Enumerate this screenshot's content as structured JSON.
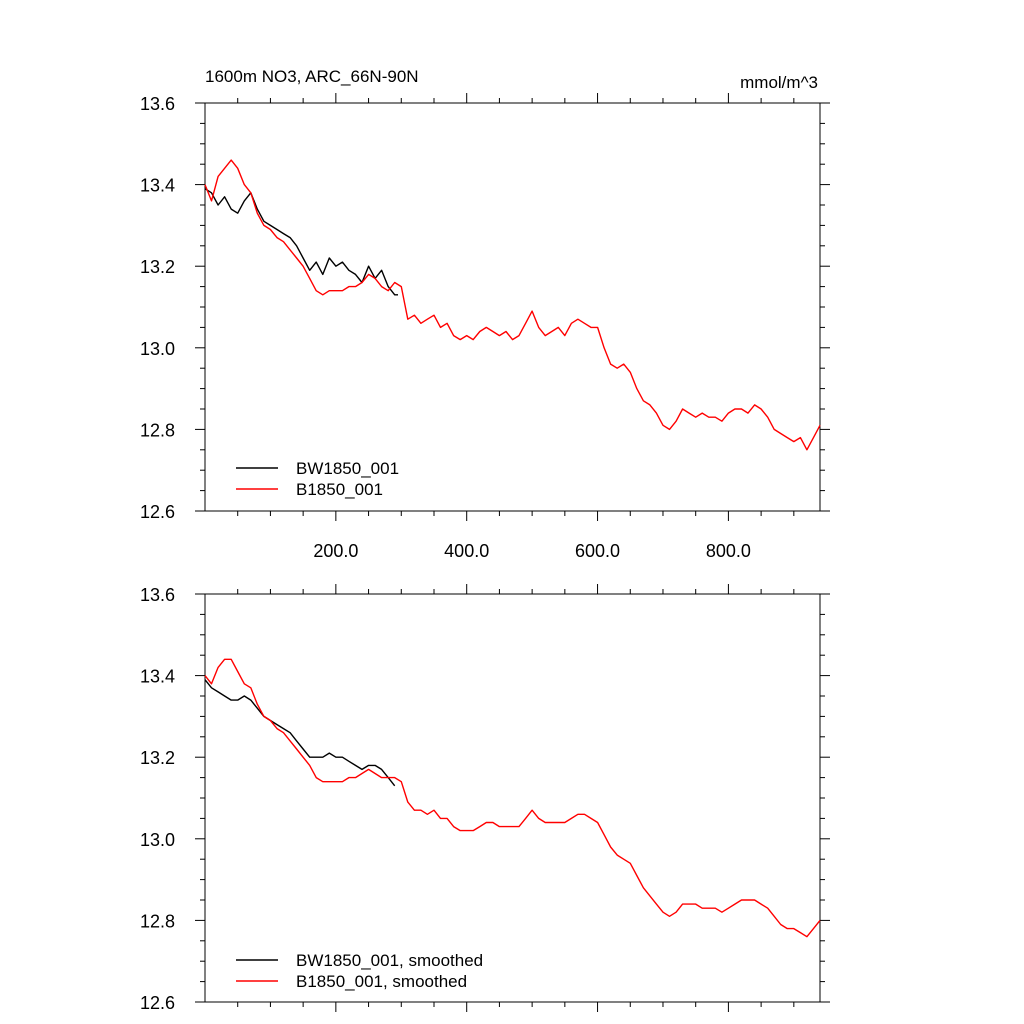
{
  "chart_data": [
    {
      "type": "line",
      "title": "1600m NO3, ARC_66N-90N",
      "units": "mmol/m^3",
      "xlim": [
        0,
        940
      ],
      "ylim": [
        12.6,
        13.6
      ],
      "xticks": [
        200,
        400,
        600,
        800
      ],
      "xtick_labels": [
        "200.0",
        "400.0",
        "600.0",
        "800.0"
      ],
      "yticks": [
        12.6,
        12.8,
        13.0,
        13.2,
        13.4,
        13.6
      ],
      "ytick_labels": [
        "12.6",
        "12.8",
        "13.0",
        "13.2",
        "13.4",
        "13.6"
      ],
      "legend_position": "bottom-left",
      "series": [
        {
          "name": "BW1850_001",
          "color": "#000000",
          "x": [
            0,
            10,
            20,
            30,
            40,
            50,
            60,
            70,
            80,
            90,
            100,
            110,
            120,
            130,
            140,
            150,
            160,
            170,
            180,
            190,
            200,
            210,
            220,
            230,
            240,
            250,
            260,
            270,
            280,
            290,
            295
          ],
          "y": [
            13.39,
            13.38,
            13.35,
            13.37,
            13.34,
            13.33,
            13.36,
            13.38,
            13.34,
            13.31,
            13.3,
            13.29,
            13.28,
            13.27,
            13.25,
            13.22,
            13.19,
            13.21,
            13.18,
            13.22,
            13.2,
            13.21,
            13.19,
            13.18,
            13.16,
            13.2,
            13.17,
            13.19,
            13.15,
            13.13,
            13.13
          ]
        },
        {
          "name": "B1850_001",
          "color": "#ff0000",
          "x": [
            0,
            10,
            20,
            30,
            40,
            50,
            60,
            70,
            80,
            90,
            100,
            110,
            120,
            130,
            140,
            150,
            160,
            170,
            180,
            190,
            200,
            210,
            220,
            230,
            240,
            250,
            260,
            270,
            280,
            290,
            300,
            310,
            320,
            330,
            340,
            350,
            360,
            370,
            380,
            390,
            400,
            410,
            420,
            430,
            440,
            450,
            460,
            470,
            480,
            490,
            500,
            510,
            520,
            530,
            540,
            550,
            560,
            570,
            580,
            590,
            600,
            610,
            620,
            630,
            640,
            650,
            660,
            670,
            680,
            690,
            700,
            710,
            720,
            730,
            740,
            750,
            760,
            770,
            780,
            790,
            800,
            810,
            820,
            830,
            840,
            850,
            860,
            870,
            880,
            890,
            900,
            910,
            920,
            930,
            940
          ],
          "y": [
            13.4,
            13.36,
            13.42,
            13.44,
            13.46,
            13.44,
            13.4,
            13.38,
            13.33,
            13.3,
            13.29,
            13.27,
            13.26,
            13.24,
            13.22,
            13.2,
            13.17,
            13.14,
            13.13,
            13.14,
            13.14,
            13.14,
            13.15,
            13.15,
            13.16,
            13.18,
            13.17,
            13.15,
            13.14,
            13.16,
            13.15,
            13.07,
            13.08,
            13.06,
            13.07,
            13.08,
            13.05,
            13.06,
            13.03,
            13.02,
            13.03,
            13.02,
            13.04,
            13.05,
            13.04,
            13.03,
            13.04,
            13.02,
            13.03,
            13.06,
            13.09,
            13.05,
            13.03,
            13.04,
            13.05,
            13.03,
            13.06,
            13.07,
            13.06,
            13.05,
            13.05,
            13.0,
            12.96,
            12.95,
            12.96,
            12.94,
            12.9,
            12.87,
            12.86,
            12.84,
            12.81,
            12.8,
            12.82,
            12.85,
            12.84,
            12.83,
            12.84,
            12.83,
            12.83,
            12.82,
            12.84,
            12.85,
            12.85,
            12.84,
            12.86,
            12.85,
            12.83,
            12.8,
            12.79,
            12.78,
            12.77,
            12.78,
            12.75,
            12.78,
            12.81
          ]
        }
      ]
    },
    {
      "type": "line",
      "title": "",
      "units": "",
      "xlim": [
        0,
        940
      ],
      "ylim": [
        12.6,
        13.6
      ],
      "xticks": [
        200,
        400,
        600,
        800
      ],
      "yticks": [
        12.6,
        12.8,
        13.0,
        13.2,
        13.4,
        13.6
      ],
      "ytick_labels": [
        "12.6",
        "12.8",
        "13.0",
        "13.2",
        "13.4",
        "13.6"
      ],
      "legend_position": "bottom-left",
      "series": [
        {
          "name": "BW1850_001, smoothed",
          "color": "#000000",
          "x": [
            0,
            10,
            20,
            30,
            40,
            50,
            60,
            70,
            80,
            90,
            100,
            110,
            120,
            130,
            140,
            150,
            160,
            170,
            180,
            190,
            200,
            210,
            220,
            230,
            240,
            250,
            260,
            270,
            280,
            290
          ],
          "y": [
            13.39,
            13.37,
            13.36,
            13.35,
            13.34,
            13.34,
            13.35,
            13.34,
            13.32,
            13.3,
            13.29,
            13.28,
            13.27,
            13.26,
            13.24,
            13.22,
            13.2,
            13.2,
            13.2,
            13.21,
            13.2,
            13.2,
            13.19,
            13.18,
            13.17,
            13.18,
            13.18,
            13.17,
            13.15,
            13.13
          ]
        },
        {
          "name": "B1850_001, smoothed",
          "color": "#ff0000",
          "x": [
            0,
            10,
            20,
            30,
            40,
            50,
            60,
            70,
            80,
            90,
            100,
            110,
            120,
            130,
            140,
            150,
            160,
            170,
            180,
            190,
            200,
            210,
            220,
            230,
            240,
            250,
            260,
            270,
            280,
            290,
            300,
            310,
            320,
            330,
            340,
            350,
            360,
            370,
            380,
            390,
            400,
            410,
            420,
            430,
            440,
            450,
            460,
            470,
            480,
            490,
            500,
            510,
            520,
            530,
            540,
            550,
            560,
            570,
            580,
            590,
            600,
            610,
            620,
            630,
            640,
            650,
            660,
            670,
            680,
            690,
            700,
            710,
            720,
            730,
            740,
            750,
            760,
            770,
            780,
            790,
            800,
            810,
            820,
            830,
            840,
            850,
            860,
            870,
            880,
            890,
            900,
            910,
            920,
            930,
            940
          ],
          "y": [
            13.4,
            13.38,
            13.42,
            13.44,
            13.44,
            13.41,
            13.38,
            13.37,
            13.33,
            13.3,
            13.29,
            13.27,
            13.26,
            13.24,
            13.22,
            13.2,
            13.18,
            13.15,
            13.14,
            13.14,
            13.14,
            13.14,
            13.15,
            13.15,
            13.16,
            13.17,
            13.16,
            13.15,
            13.15,
            13.15,
            13.14,
            13.09,
            13.07,
            13.07,
            13.06,
            13.07,
            13.05,
            13.05,
            13.03,
            13.02,
            13.02,
            13.02,
            13.03,
            13.04,
            13.04,
            13.03,
            13.03,
            13.03,
            13.03,
            13.05,
            13.07,
            13.05,
            13.04,
            13.04,
            13.04,
            13.04,
            13.05,
            13.06,
            13.06,
            13.05,
            13.04,
            13.01,
            12.98,
            12.96,
            12.95,
            12.94,
            12.91,
            12.88,
            12.86,
            12.84,
            12.82,
            12.81,
            12.82,
            12.84,
            12.84,
            12.84,
            12.83,
            12.83,
            12.83,
            12.82,
            12.83,
            12.84,
            12.85,
            12.85,
            12.85,
            12.84,
            12.83,
            12.81,
            12.79,
            12.78,
            12.78,
            12.77,
            12.76,
            12.78,
            12.8
          ]
        }
      ]
    }
  ]
}
